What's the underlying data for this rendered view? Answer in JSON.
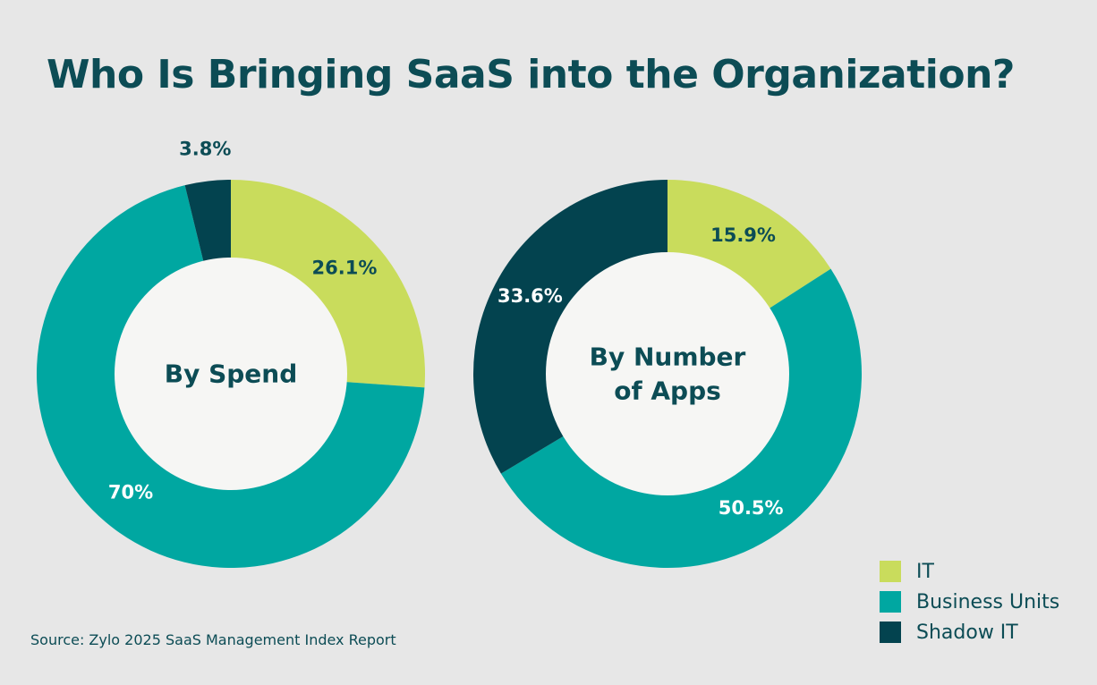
{
  "title": "Who Is Bringing SaaS into the Organization?",
  "source": "Source: Zylo 2025 SaaS Management Index Report",
  "colors": {
    "it": "#c9dc5c",
    "business_units": "#00a7a1",
    "shadow_it": "#03434f",
    "hole": "#f6f6f4",
    "text_dark": "#0c4c55",
    "text_light": "#ffffff"
  },
  "legend": [
    {
      "label": "IT",
      "color": "#c9dc5c"
    },
    {
      "label": "Business Units",
      "color": "#00a7a1"
    },
    {
      "label": "Shadow IT",
      "color": "#03434f"
    }
  ],
  "chart_data": [
    {
      "type": "pie",
      "center_label": [
        "By Spend"
      ],
      "slices": [
        {
          "name": "IT",
          "value": 26.1,
          "label": "26.1%",
          "color": "#c9dc5c",
          "label_color": "#0c4c55"
        },
        {
          "name": "Business Units",
          "value": 70,
          "label": "70%",
          "color": "#00a7a1",
          "label_color": "#ffffff"
        },
        {
          "name": "Shadow IT",
          "value": 3.8,
          "label": "3.8%",
          "color": "#03434f",
          "label_color": "#0c4c55"
        }
      ]
    },
    {
      "type": "pie",
      "center_label": [
        "By Number",
        "of Apps"
      ],
      "slices": [
        {
          "name": "IT",
          "value": 15.9,
          "label": "15.9%",
          "color": "#c9dc5c",
          "label_color": "#0c4c55"
        },
        {
          "name": "Business Units",
          "value": 50.5,
          "label": "50.5%",
          "color": "#00a7a1",
          "label_color": "#ffffff"
        },
        {
          "name": "Shadow IT",
          "value": 33.6,
          "label": "33.6%",
          "color": "#03434f",
          "label_color": "#ffffff"
        }
      ]
    }
  ]
}
